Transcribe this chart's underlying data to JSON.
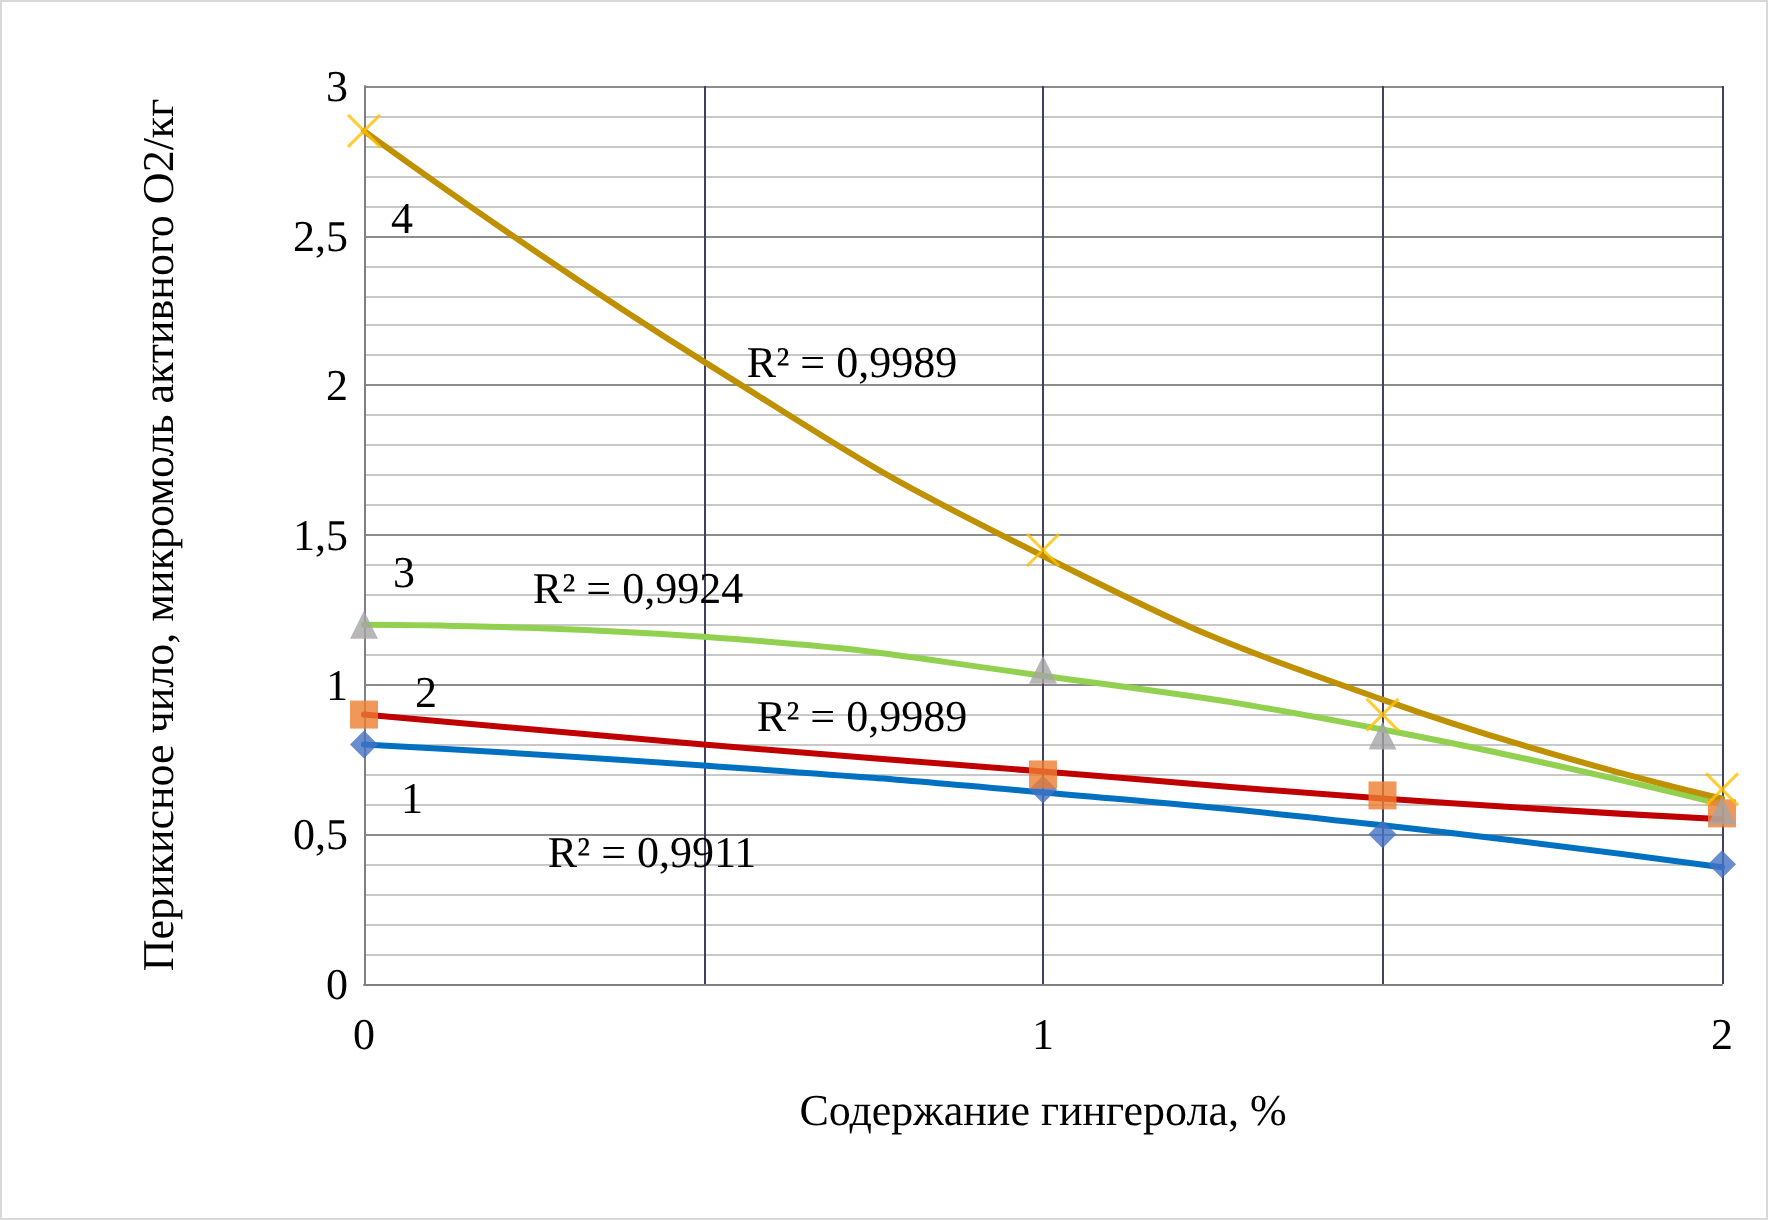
{
  "chart_data": {
    "type": "scatter",
    "xlabel": "Содержание гингерола, %",
    "ylabel": "Перикисное чило, микромоль активного О2/кг",
    "xlim": [
      0,
      2
    ],
    "xticks": [
      0,
      {
        "value": 0.5,
        "label": null
      },
      1,
      {
        "value": 1.5,
        "label": null
      },
      2
    ],
    "ylim": [
      0,
      3
    ],
    "yticks": [
      0,
      {
        "value": 0.5,
        "label": "0,5"
      },
      1,
      {
        "value": 1.5,
        "label": "1,5"
      },
      2,
      {
        "value": 2.5,
        "label": "2,5"
      },
      3
    ],
    "grid": true,
    "x": [
      0,
      1,
      1.5,
      2
    ],
    "series": [
      {
        "marker": "diamond",
        "color": "#4472c4",
        "values": [
          0.8,
          0.65,
          0.5,
          0.4
        ]
      },
      {
        "marker": "square",
        "color": "#ed7d31",
        "values": [
          0.9,
          0.7,
          0.63,
          0.57
        ]
      },
      {
        "marker": "triangle",
        "color": "#a5a5a5",
        "values": [
          1.2,
          1.05,
          0.83,
          0.58
        ]
      },
      {
        "marker": "cross",
        "color": "#ffc000",
        "values": [
          2.85,
          1.45,
          0.9,
          0.65
        ]
      },
      {
        "type": "line",
        "marker": "none",
        "color": "#0070c0",
        "x": [
          0,
          0.5,
          1,
          1.5,
          2
        ],
        "values": [
          0.8,
          0.73,
          0.64,
          0.53,
          0.39
        ]
      },
      {
        "type": "line",
        "marker": "none",
        "color": "#c00000",
        "x": [
          0,
          0.5,
          1,
          1.5,
          2
        ],
        "values": [
          0.9,
          0.8,
          0.71,
          0.62,
          0.55
        ]
      },
      {
        "type": "line",
        "marker": "none",
        "color": "#92d050",
        "x": [
          0,
          0.5,
          1,
          1.5,
          2
        ],
        "values": [
          1.2,
          1.16,
          1.03,
          0.85,
          0.6
        ]
      },
      {
        "type": "line",
        "marker": "none",
        "color": "#bf9000",
        "x": [
          0,
          0.5,
          1,
          1.5,
          2
        ],
        "values": [
          2.85,
          2.08,
          1.43,
          0.95,
          0.62
        ]
      }
    ],
    "annotations": [
      "4",
      "R² = 0,9989",
      "3",
      "R² = 0,9924",
      "2",
      "R² = 0,9989",
      "1",
      "R² = 0,9911"
    ]
  }
}
